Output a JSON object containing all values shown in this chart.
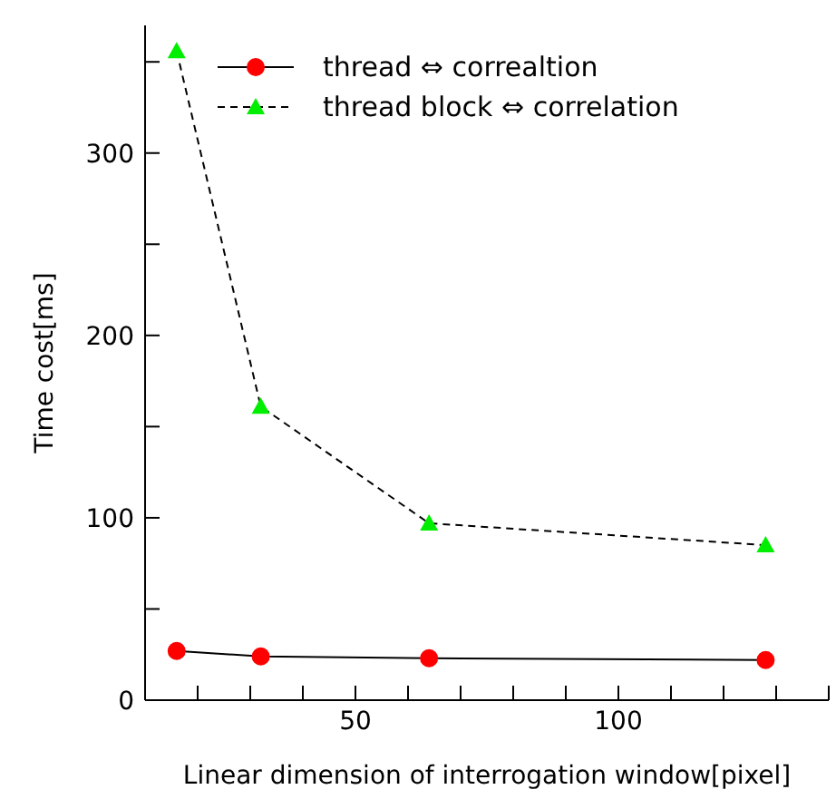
{
  "chart_data": {
    "type": "line",
    "xlabel": "Linear dimension of interrogation window[pixel]",
    "ylabel": "Time cost[ms]",
    "x": [
      16,
      32,
      64,
      128
    ],
    "series": [
      {
        "name": "thread ⇔ correaltion",
        "color": "#ff0000",
        "marker": "circle",
        "line_style": "solid",
        "values": [
          27,
          24,
          23,
          22
        ]
      },
      {
        "name": "thread block ⇔ correlation",
        "color": "#00ee00",
        "marker": "triangle",
        "line_style": "dashed",
        "values": [
          356,
          161,
          97,
          85
        ]
      }
    ],
    "xlim": [
      10,
      140
    ],
    "xticks": [
      {
        "value": 10,
        "label": null
      },
      {
        "value": 20,
        "label": null
      },
      {
        "value": 30,
        "label": null
      },
      {
        "value": 40,
        "label": null
      },
      50,
      {
        "value": 60,
        "label": null
      },
      {
        "value": 70,
        "label": null
      },
      {
        "value": 80,
        "label": null
      },
      {
        "value": 90,
        "label": null
      },
      100,
      {
        "value": 110,
        "label": null
      },
      {
        "value": 120,
        "label": null
      },
      {
        "value": 130,
        "label": null
      },
      {
        "value": 140,
        "label": null
      }
    ],
    "ylim": [
      0,
      370
    ],
    "yticks": [
      0,
      {
        "value": 50,
        "label": null
      },
      100,
      {
        "value": 150,
        "label": null
      },
      200,
      {
        "value": 250,
        "label": null
      },
      300,
      {
        "value": 350,
        "label": null
      }
    ],
    "grid": false,
    "legend": "top"
  }
}
